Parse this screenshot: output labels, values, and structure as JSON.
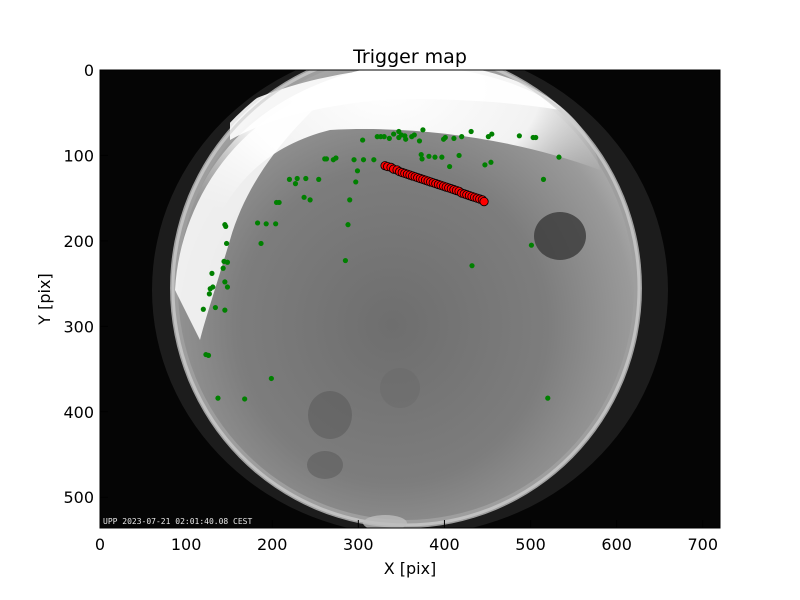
{
  "chart_data": {
    "type": "scatter",
    "title": "Trigger map",
    "xlabel": "X [pix]",
    "ylabel": "Y [pix]",
    "xlim": [
      0,
      720
    ],
    "ylim": [
      536,
      0
    ],
    "x_ticks": [
      0,
      100,
      200,
      300,
      400,
      500,
      600,
      700
    ],
    "y_ticks": [
      0,
      100,
      200,
      300,
      400,
      500
    ],
    "timestamp_text": "UPP 2023-07-21 02:01:40.08 CEST",
    "background": "all-sky camera grayscale frame",
    "grid": false,
    "series": [
      {
        "color": "#008000",
        "marker": "dot",
        "points": [
          [
            120,
            280
          ],
          [
            123,
            333
          ],
          [
            126,
            334
          ],
          [
            127,
            262
          ],
          [
            128,
            256
          ],
          [
            130,
            238
          ],
          [
            131,
            254
          ],
          [
            134,
            278
          ],
          [
            137,
            384
          ],
          [
            143,
            232
          ],
          [
            144,
            224
          ],
          [
            145,
            248
          ],
          [
            145,
            281
          ],
          [
            145,
            181
          ],
          [
            146,
            183
          ],
          [
            147,
            203
          ],
          [
            148,
            254
          ],
          [
            148,
            225
          ],
          [
            168,
            385
          ],
          [
            183,
            179
          ],
          [
            187,
            203
          ],
          [
            193,
            180
          ],
          [
            199,
            361
          ],
          [
            204,
            180
          ],
          [
            205,
            155
          ],
          [
            208,
            155
          ],
          [
            220,
            128
          ],
          [
            227,
            133
          ],
          [
            229,
            127
          ],
          [
            237,
            149
          ],
          [
            239,
            127
          ],
          [
            244,
            152
          ],
          [
            254,
            128
          ],
          [
            261,
            104
          ],
          [
            263,
            104
          ],
          [
            271,
            105
          ],
          [
            274,
            103
          ],
          [
            285,
            223
          ],
          [
            288,
            181
          ],
          [
            290,
            152
          ],
          [
            295,
            105
          ],
          [
            297,
            131
          ],
          [
            299,
            118
          ],
          [
            305,
            82
          ],
          [
            306,
            105
          ],
          [
            318,
            105
          ],
          [
            322,
            78
          ],
          [
            326,
            78
          ],
          [
            330,
            78
          ],
          [
            336,
            80
          ],
          [
            341,
            75
          ],
          [
            347,
            72
          ],
          [
            347,
            79
          ],
          [
            350,
            76
          ],
          [
            354,
            77
          ],
          [
            355,
            81
          ],
          [
            362,
            78
          ],
          [
            365,
            76
          ],
          [
            371,
            83
          ],
          [
            373,
            99
          ],
          [
            374,
            104
          ],
          [
            375,
            70
          ],
          [
            382,
            101
          ],
          [
            389,
            102
          ],
          [
            397,
            102
          ],
          [
            399,
            81
          ],
          [
            401,
            79
          ],
          [
            406,
            113
          ],
          [
            411,
            80
          ],
          [
            417,
            100
          ],
          [
            420,
            78
          ],
          [
            431,
            72
          ],
          [
            432,
            229
          ],
          [
            447,
            111
          ],
          [
            451,
            78
          ],
          [
            454,
            108
          ],
          [
            455,
            75
          ],
          [
            487,
            77
          ],
          [
            501,
            205
          ],
          [
            503,
            79
          ],
          [
            506,
            79
          ],
          [
            515,
            128
          ],
          [
            520,
            384
          ],
          [
            533,
            102
          ]
        ]
      },
      {
        "color": "#ff0000",
        "marker": "circle",
        "points": [
          [
            331,
            112
          ],
          [
            334,
            113
          ],
          [
            338,
            114
          ],
          [
            341,
            116
          ],
          [
            345,
            117
          ],
          [
            348,
            119
          ],
          [
            351,
            120
          ],
          [
            354,
            121
          ],
          [
            357,
            122
          ],
          [
            360,
            123
          ],
          [
            363,
            124
          ],
          [
            366,
            125
          ],
          [
            369,
            126
          ],
          [
            372,
            127
          ],
          [
            375,
            128
          ],
          [
            378,
            129
          ],
          [
            381,
            130
          ],
          [
            384,
            131
          ],
          [
            387,
            132
          ],
          [
            390,
            133
          ],
          [
            393,
            134
          ],
          [
            396,
            135
          ],
          [
            399,
            136
          ],
          [
            402,
            137
          ],
          [
            405,
            138
          ],
          [
            408,
            139
          ],
          [
            411,
            140
          ],
          [
            414,
            141
          ],
          [
            417,
            142
          ],
          [
            420,
            144
          ],
          [
            423,
            145
          ],
          [
            426,
            146
          ],
          [
            429,
            147
          ],
          [
            432,
            148
          ],
          [
            435,
            149
          ],
          [
            438,
            150
          ],
          [
            441,
            151
          ],
          [
            444,
            152
          ],
          [
            446,
            154
          ]
        ]
      }
    ]
  }
}
